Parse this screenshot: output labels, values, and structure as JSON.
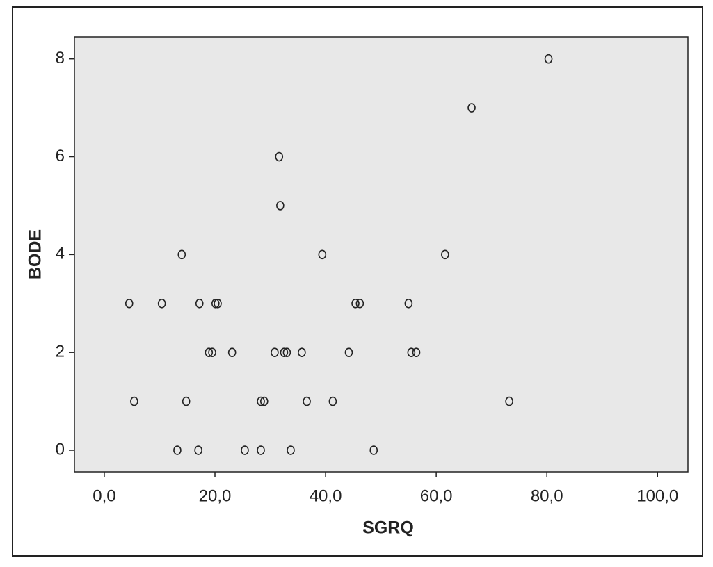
{
  "chart_data": {
    "type": "scatter",
    "x_label": "SGRQ",
    "y_label": "BODE",
    "x": [
      4.5,
      5.4,
      10.4,
      14.0,
      14.8,
      13.2,
      17.2,
      17.0,
      18.9,
      19.5,
      20.1,
      20.5,
      23.1,
      25.4,
      28.3,
      28.3,
      28.9,
      30.8,
      31.6,
      31.8,
      32.5,
      33.0,
      33.7,
      35.7,
      36.6,
      39.4,
      41.3,
      44.2,
      45.4,
      46.2,
      48.7,
      55.0,
      55.5,
      56.4,
      61.6,
      66.4,
      73.2,
      80.3
    ],
    "values": [
      3,
      1,
      3,
      4,
      1,
      0,
      3,
      0,
      2,
      2,
      3,
      3,
      2,
      0,
      0,
      1,
      1,
      2,
      6,
      5,
      2,
      2,
      0,
      2,
      1,
      4,
      1,
      2,
      3,
      3,
      0,
      3,
      2,
      2,
      4,
      7,
      1,
      8
    ],
    "color": "#222222",
    "background": "#e8e8e8",
    "xlim": [
      -5.4,
      105.5
    ],
    "ylim": [
      -0.44,
      8.45
    ],
    "xticks": [
      {
        "value": 0,
        "label": "0,0"
      },
      {
        "value": 20,
        "label": "20,0"
      },
      {
        "value": 40,
        "label": "40,0"
      },
      {
        "value": 60,
        "label": "60,0"
      },
      {
        "value": 80,
        "label": "80,0"
      },
      {
        "value": 100,
        "label": "100,0"
      }
    ],
    "yticks": [
      0,
      2,
      4,
      6,
      8
    ]
  }
}
